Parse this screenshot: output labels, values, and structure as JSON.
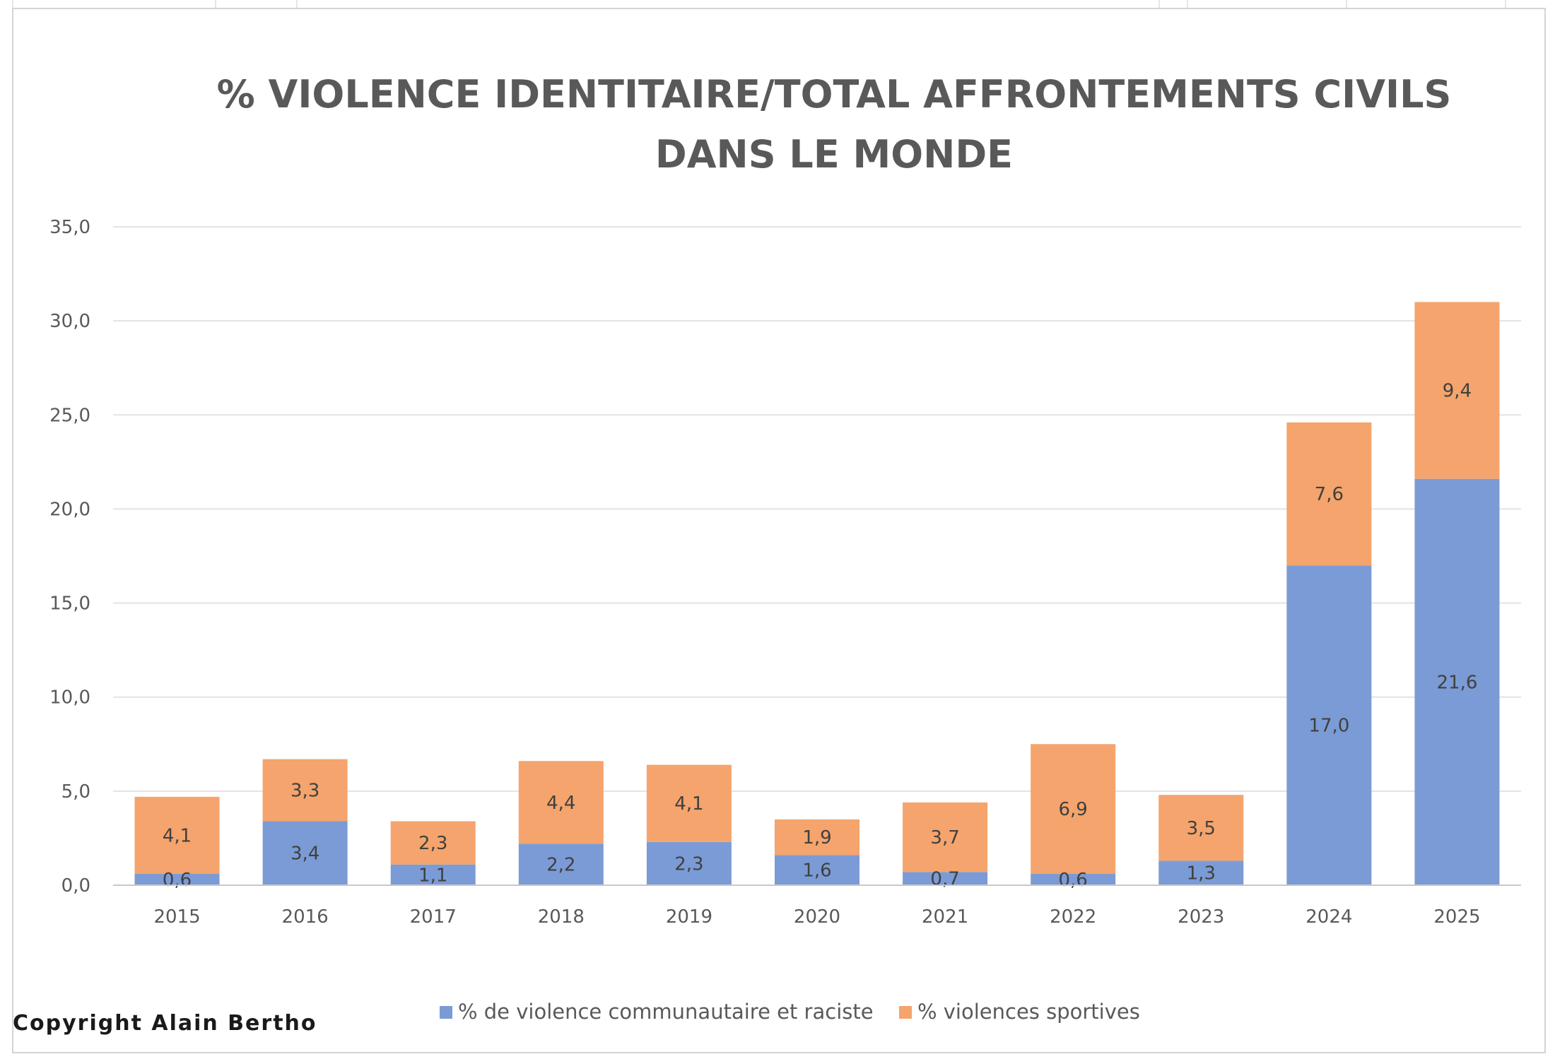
{
  "chart_data": {
    "type": "bar",
    "stacked": true,
    "title": [
      "% VIOLENCE IDENTITAIRE/TOTAL AFFRONTEMENTS CIVILS",
      "DANS LE MONDE"
    ],
    "categories": [
      "2015",
      "2016",
      "2017",
      "2018",
      "2019",
      "2020",
      "2021",
      "2022",
      "2023",
      "2024",
      "2025"
    ],
    "series": [
      {
        "name": "% de violence communautaire et raciste",
        "color": "#7b9bd6",
        "values": [
          0.6,
          3.4,
          1.1,
          2.2,
          2.3,
          1.6,
          0.7,
          0.6,
          1.3,
          17.0,
          21.6
        ],
        "labels": [
          "0,6",
          "3,4",
          "1,1",
          "2,2",
          "2,3",
          "1,6",
          "0,7",
          "0,6",
          "1,3",
          "17,0",
          "21,6"
        ]
      },
      {
        "name": "% violences sportives",
        "color": "#f4a46c",
        "values": [
          4.1,
          3.3,
          2.3,
          4.4,
          4.1,
          1.9,
          3.7,
          6.9,
          3.5,
          7.6,
          9.4
        ],
        "labels": [
          "4,1",
          "3,3",
          "2,3",
          "4,4",
          "4,1",
          "1,9",
          "3,7",
          "6,9",
          "3,5",
          "7,6",
          "9,4"
        ]
      }
    ],
    "xlabel": "",
    "ylabel": "",
    "ylim": [
      0,
      35
    ],
    "y_ticks": [
      0,
      5,
      10,
      15,
      20,
      25,
      30,
      35
    ],
    "y_tick_labels": [
      "0,0",
      "5,0",
      "10,0",
      "15,0",
      "20,0",
      "25,0",
      "30,0",
      "35,0"
    ],
    "grid": true,
    "legend": "bottom",
    "gridline_color": "#e3e3e3",
    "axis_color": "#c8c8c8"
  },
  "copyright": "Copyright Alain Bertho"
}
